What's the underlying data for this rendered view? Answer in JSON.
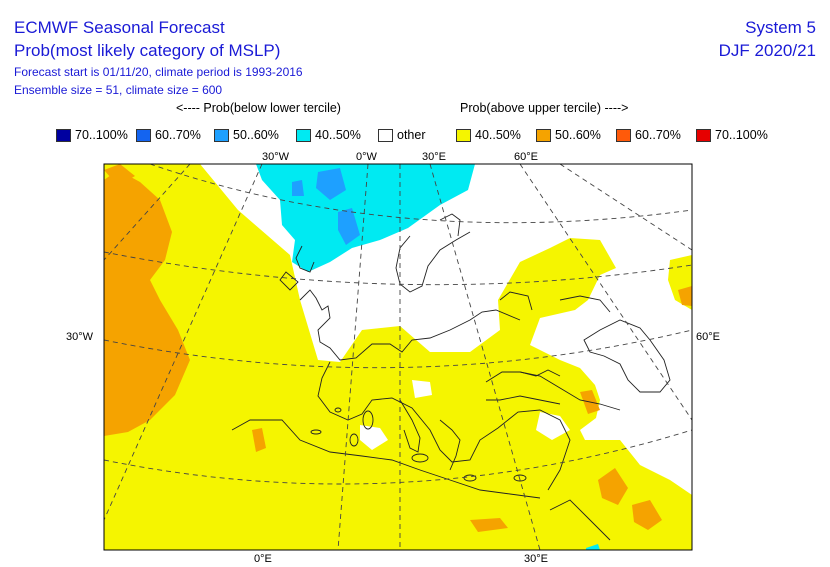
{
  "header": {
    "title": "ECMWF Seasonal Forecast",
    "subtitle": "Prob(most likely category of MSLP)",
    "line3": "Forecast start is 01/11/20, climate period is 1993-2016",
    "line4": "Ensemble size = 51, climate size = 600",
    "system": "System 5",
    "season": "DJF 2020/21"
  },
  "legend": {
    "below_label": "<---- Prob(below lower tercile)",
    "above_label": "Prob(above upper tercile) ---->",
    "items": [
      {
        "label": "70..100%",
        "color": "#0000a0"
      },
      {
        "label": "60..70%",
        "color": "#1464f0"
      },
      {
        "label": "50..60%",
        "color": "#1ea0ff"
      },
      {
        "label": "40..50%",
        "color": "#00eaf2"
      },
      {
        "label": "other",
        "color": "#ffffff"
      },
      {
        "label": "40..50%",
        "color": "#f5f500"
      },
      {
        "label": "50..60%",
        "color": "#f5a300"
      },
      {
        "label": "60..70%",
        "color": "#ff5a0a"
      },
      {
        "label": "70..100%",
        "color": "#e60000"
      }
    ]
  },
  "map": {
    "top_lon_labels": [
      "30°W",
      "0°W",
      "30°E",
      "60°E"
    ],
    "bottom_lon_labels": [
      "0°E",
      "30°E"
    ],
    "left_lat_label": "30°W",
    "right_lat_label": "60°E"
  }
}
